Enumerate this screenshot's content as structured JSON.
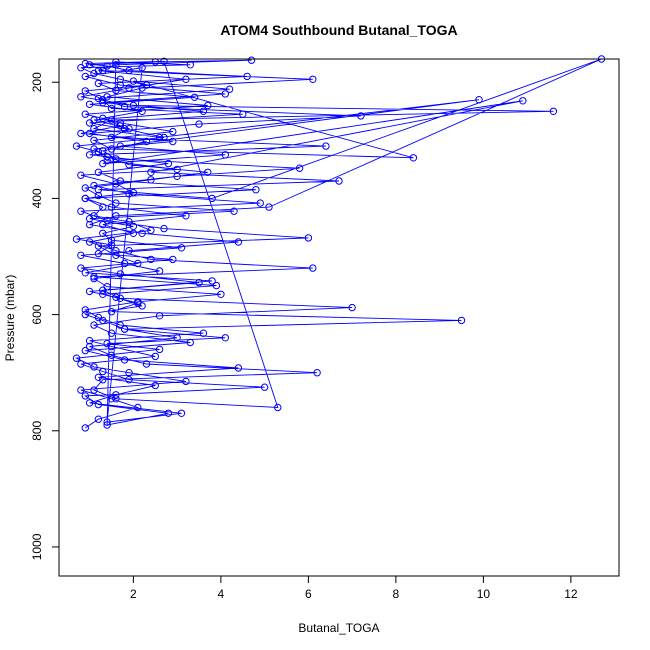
{
  "chart_data": {
    "type": "scatter",
    "title": "ATOM4 Southbound Butanal_TOGA",
    "xlabel": "Butanal_TOGA",
    "ylabel": "Pressure (mbar)",
    "xlim": [
      0.3,
      13.1
    ],
    "ylim": [
      1050,
      160
    ],
    "y_reversed": true,
    "x_ticks": [
      2,
      4,
      6,
      8,
      10,
      12
    ],
    "y_ticks": [
      200,
      400,
      600,
      800,
      1000
    ],
    "grid": false,
    "legend": "none",
    "series_color": "#0000ff",
    "marker": "open-circle",
    "connected": true,
    "x": [
      0.9,
      1.2,
      2.1,
      1.5,
      0.8,
      3.2,
      1.9,
      1.1,
      0.7,
      2.6,
      1.4,
      4.1,
      1.8,
      1.3,
      0.9,
      2.2,
      1.6,
      1.0,
      3.5,
      1.7,
      0.8,
      2.9,
      1.2,
      1.5,
      0.7,
      2.4,
      1.9,
      1.1,
      1.3,
      0.9,
      2.0,
      1.6,
      0.8,
      3.0,
      1.4,
      1.2,
      0.7,
      2.7,
      1.8,
      1.0,
      4.5,
      1.5,
      1.3,
      0.9,
      2.3,
      1.7,
      1.1,
      0.8,
      3.3,
      1.6,
      1.4,
      2.8,
      1.2,
      0.9,
      5.0,
      1.9,
      1.3,
      0.8,
      2.5,
      1.5,
      1.0,
      3.6,
      1.7,
      1.2,
      0.9,
      2.1,
      4.0,
      1.4,
      1.1,
      2.6,
      1.8,
      0.8,
      3.1,
      1.5,
      1.3,
      2.0,
      1.0,
      4.3,
      1.6,
      1.2,
      0.9,
      2.4,
      3.7,
      1.9,
      1.4,
      1.1,
      2.9,
      0.8,
      1.7,
      1.3,
      2.2,
      1.0,
      3.4,
      1.6,
      1.2,
      4.6,
      1.9,
      1.4,
      0.9,
      2.7,
      5.3,
      1.6,
      1.1,
      1.3,
      6.2,
      2.3,
      1.5,
      1.0,
      3.0,
      1.8,
      9.5,
      1.5,
      2.1,
      1.3,
      3.9,
      1.1,
      6.1,
      2.4,
      1.6,
      1.0,
      2.0,
      1.3,
      3.2,
      1.5,
      0.9,
      4.8,
      1.7,
      1.2,
      2.8,
      1.0,
      6.4,
      1.5,
      1.9,
      1.1,
      3.6,
      1.3,
      4.1,
      1.7,
      0.9,
      2.2,
      1.4,
      3.1,
      1.0,
      1.6,
      2.5,
      1.2,
      4.4,
      1.8,
      0.9,
      3.3,
      1.5,
      1.1,
      2.6,
      7.0,
      1.7,
      1.3,
      3.8,
      0.9,
      2.1,
      1.6,
      1.2,
      6.0,
      2.7,
      1.4,
      0.8,
      4.9,
      1.9,
      1.1,
      3.0,
      5.8,
      1.6,
      1.3,
      2.3,
      1.0,
      3.5,
      7.2,
      1.8,
      1.2,
      4.2,
      2.0,
      8.4,
      1.5,
      1.1,
      2.9,
      1.7,
      0.9,
      3.7,
      1.4,
      2.2,
      6.1,
      1.3,
      1.0,
      2.5,
      4.7,
      1.6,
      1.2,
      3.2,
      1.9,
      0.8,
      2.0,
      11.6,
      1.5,
      1.1,
      2.6,
      9.9,
      1.7,
      4.1,
      1.3,
      10.9,
      2.4,
      6.7,
      1.2,
      3.8,
      12.7,
      5.1,
      1.6,
      1.0,
      2.2,
      4.4,
      1.9
    ],
    "y": [
      795,
      780,
      760,
      745,
      730,
      715,
      700,
      690,
      675,
      660,
      650,
      640,
      625,
      610,
      600,
      585,
      570,
      560,
      545,
      530,
      520,
      505,
      495,
      480,
      470,
      455,
      440,
      430,
      415,
      400,
      390,
      375,
      360,
      350,
      335,
      320,
      310,
      295,
      280,
      270,
      255,
      245,
      230,
      215,
      205,
      195,
      185,
      175,
      170,
      165,
      790,
      770,
      755,
      740,
      725,
      712,
      698,
      685,
      672,
      655,
      645,
      632,
      618,
      605,
      592,
      578,
      565,
      552,
      538,
      525,
      512,
      498,
      485,
      472,
      460,
      448,
      435,
      422,
      408,
      395,
      382,
      368,
      355,
      342,
      328,
      315,
      302,
      288,
      275,
      262,
      250,
      238,
      226,
      214,
      202,
      190,
      180,
      172,
      168,
      164,
      760,
      745,
      730,
      712,
      700,
      685,
      670,
      655,
      640,
      625,
      610,
      595,
      580,
      565,
      550,
      535,
      520,
      505,
      490,
      475,
      460,
      445,
      430,
      415,
      400,
      385,
      370,
      355,
      340,
      325,
      310,
      295,
      280,
      265,
      250,
      235,
      220,
      205,
      190,
      175,
      785,
      770,
      752,
      738,
      722,
      708,
      692,
      678,
      662,
      648,
      632,
      618,
      602,
      588,
      572,
      558,
      542,
      528,
      512,
      498,
      482,
      468,
      452,
      438,
      422,
      408,
      392,
      378,
      362,
      348,
      332,
      318,
      302,
      288,
      272,
      258,
      242,
      228,
      212,
      198,
      330,
      315,
      300,
      285,
      270,
      255,
      240,
      225,
      210,
      195,
      180,
      170,
      165,
      162,
      170,
      180,
      195,
      210,
      225,
      240,
      250,
      265,
      280,
      295,
      230,
      310,
      325,
      340,
      232,
      355,
      370,
      385,
      400,
      160,
      415,
      430,
      445,
      460,
      475,
      490
    ]
  }
}
